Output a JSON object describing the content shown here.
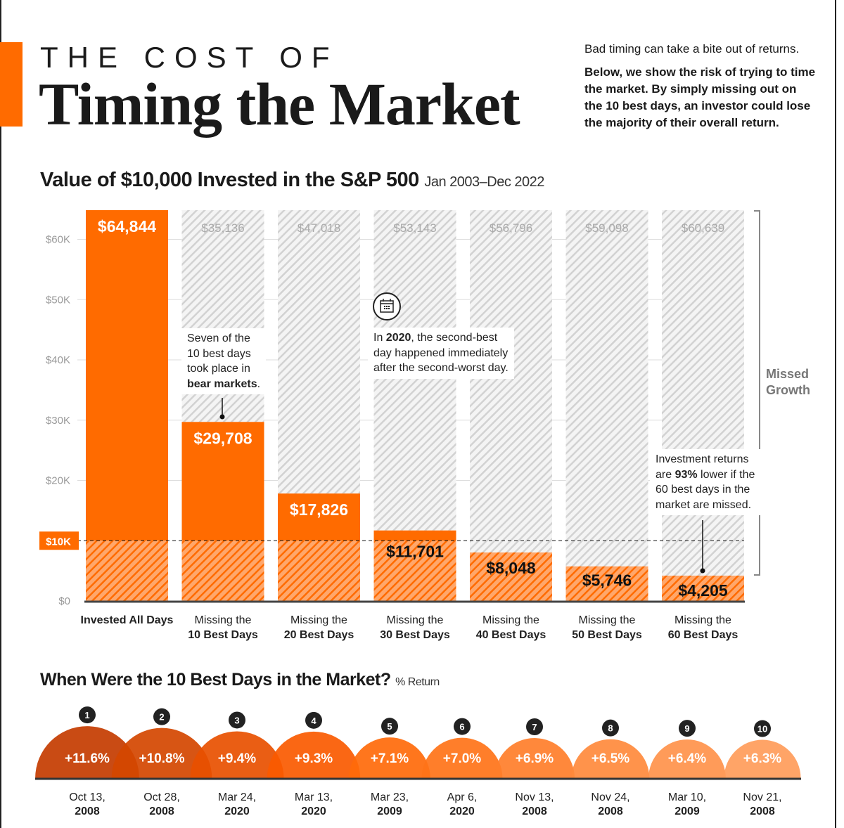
{
  "header": {
    "kicker": "THE COST OF",
    "title": "Timing the Market",
    "intro_1": "Bad timing can take a bite out of returns.",
    "intro_2": "Below, we show the risk of trying to time the market. By simply missing out on the 10 best days, an investor could lose the majority of their overall return."
  },
  "colors": {
    "accent": "#ff6b00",
    "hatch_gray": "#d0d0d0",
    "hatch_orange": "#ffa76b",
    "text": "#1a1a1a"
  },
  "chart_data": [
    {
      "type": "bar",
      "title": "Value of $10,000 Invested in the S&P 500",
      "subtitle": "Jan 2003–Dec 2022",
      "categories": [
        [
          "Invested All Days",
          ""
        ],
        [
          "Missing the",
          "10 Best Days"
        ],
        [
          "Missing the",
          "20 Best Days"
        ],
        [
          "Missing the",
          "30 Best Days"
        ],
        [
          "Missing the",
          "40 Best Days"
        ],
        [
          "Missing the",
          "50 Best Days"
        ],
        [
          "Missing the",
          "60 Best Days"
        ]
      ],
      "values": [
        64844,
        29708,
        17826,
        11701,
        8048,
        5746,
        4205
      ],
      "value_labels": [
        "$64,844",
        "$29,708",
        "$17,826",
        "$11,701",
        "$8,048",
        "$5,746",
        "$4,205"
      ],
      "missed_growth": [
        null,
        35136,
        47018,
        53143,
        56796,
        59098,
        60639
      ],
      "missed_labels": [
        "",
        "$35,136",
        "$47,018",
        "$53,143",
        "$56,796",
        "$59,098",
        "$60,639"
      ],
      "ylim": [
        0,
        64844
      ],
      "yticks": [
        0,
        10000,
        20000,
        30000,
        40000,
        50000,
        60000
      ],
      "ytick_labels": [
        "$0",
        "$10K",
        "$20K",
        "$30K",
        "$40K",
        "$50K",
        "$60K"
      ],
      "reference_line": {
        "value": 10000,
        "label": "$10K"
      },
      "legend": "Missed Growth",
      "grid": true,
      "annotations": {
        "bear": [
          "Seven of the",
          "10 best days",
          "took place in"
        ],
        "bear_bold": "bear markets",
        "covid_pre": "In ",
        "covid_bold": "2020",
        "covid_rest": ", the second-best",
        "covid_2": "day happened immediately",
        "covid_3": "after the second-worst day.",
        "sixty_1": "Investment returns",
        "sixty_2a": "are ",
        "sixty_2b": "93%",
        "sixty_2c": " lower if the",
        "sixty_3": "60 best days in the",
        "sixty_4": "market are missed."
      }
    },
    {
      "type": "bubble",
      "title": "When Were the 10 Best Days in the Market?",
      "subtitle": "% Return",
      "ranks": [
        1,
        2,
        3,
        4,
        5,
        6,
        7,
        8,
        9,
        10
      ],
      "values": [
        11.6,
        10.8,
        9.4,
        9.3,
        7.1,
        7.0,
        6.9,
        6.5,
        6.4,
        6.3
      ],
      "value_labels": [
        "+11.6%",
        "+10.8%",
        "+9.4%",
        "+9.3%",
        "+7.1%",
        "+7.0%",
        "+6.9%",
        "+6.5%",
        "+6.4%",
        "+6.3%"
      ],
      "dates": [
        [
          "Oct 13,",
          "2008"
        ],
        [
          "Oct 28,",
          "2008"
        ],
        [
          "Mar 24,",
          "2020"
        ],
        [
          "Mar 13,",
          "2020"
        ],
        [
          "Mar 23,",
          "2009"
        ],
        [
          "Apr 6,",
          "2020"
        ],
        [
          "Nov 13,",
          "2008"
        ],
        [
          "Nov 24,",
          "2008"
        ],
        [
          "Mar 10,",
          "2009"
        ],
        [
          "Nov 21,",
          "2008"
        ]
      ],
      "colors": [
        "#c43c00",
        "#d44600",
        "#e85000",
        "#fa5a00",
        "#ff6a0a",
        "#ff7318",
        "#ff7e2a",
        "#ff8a3c",
        "#ff934b",
        "#ff9c5a"
      ]
    }
  ]
}
